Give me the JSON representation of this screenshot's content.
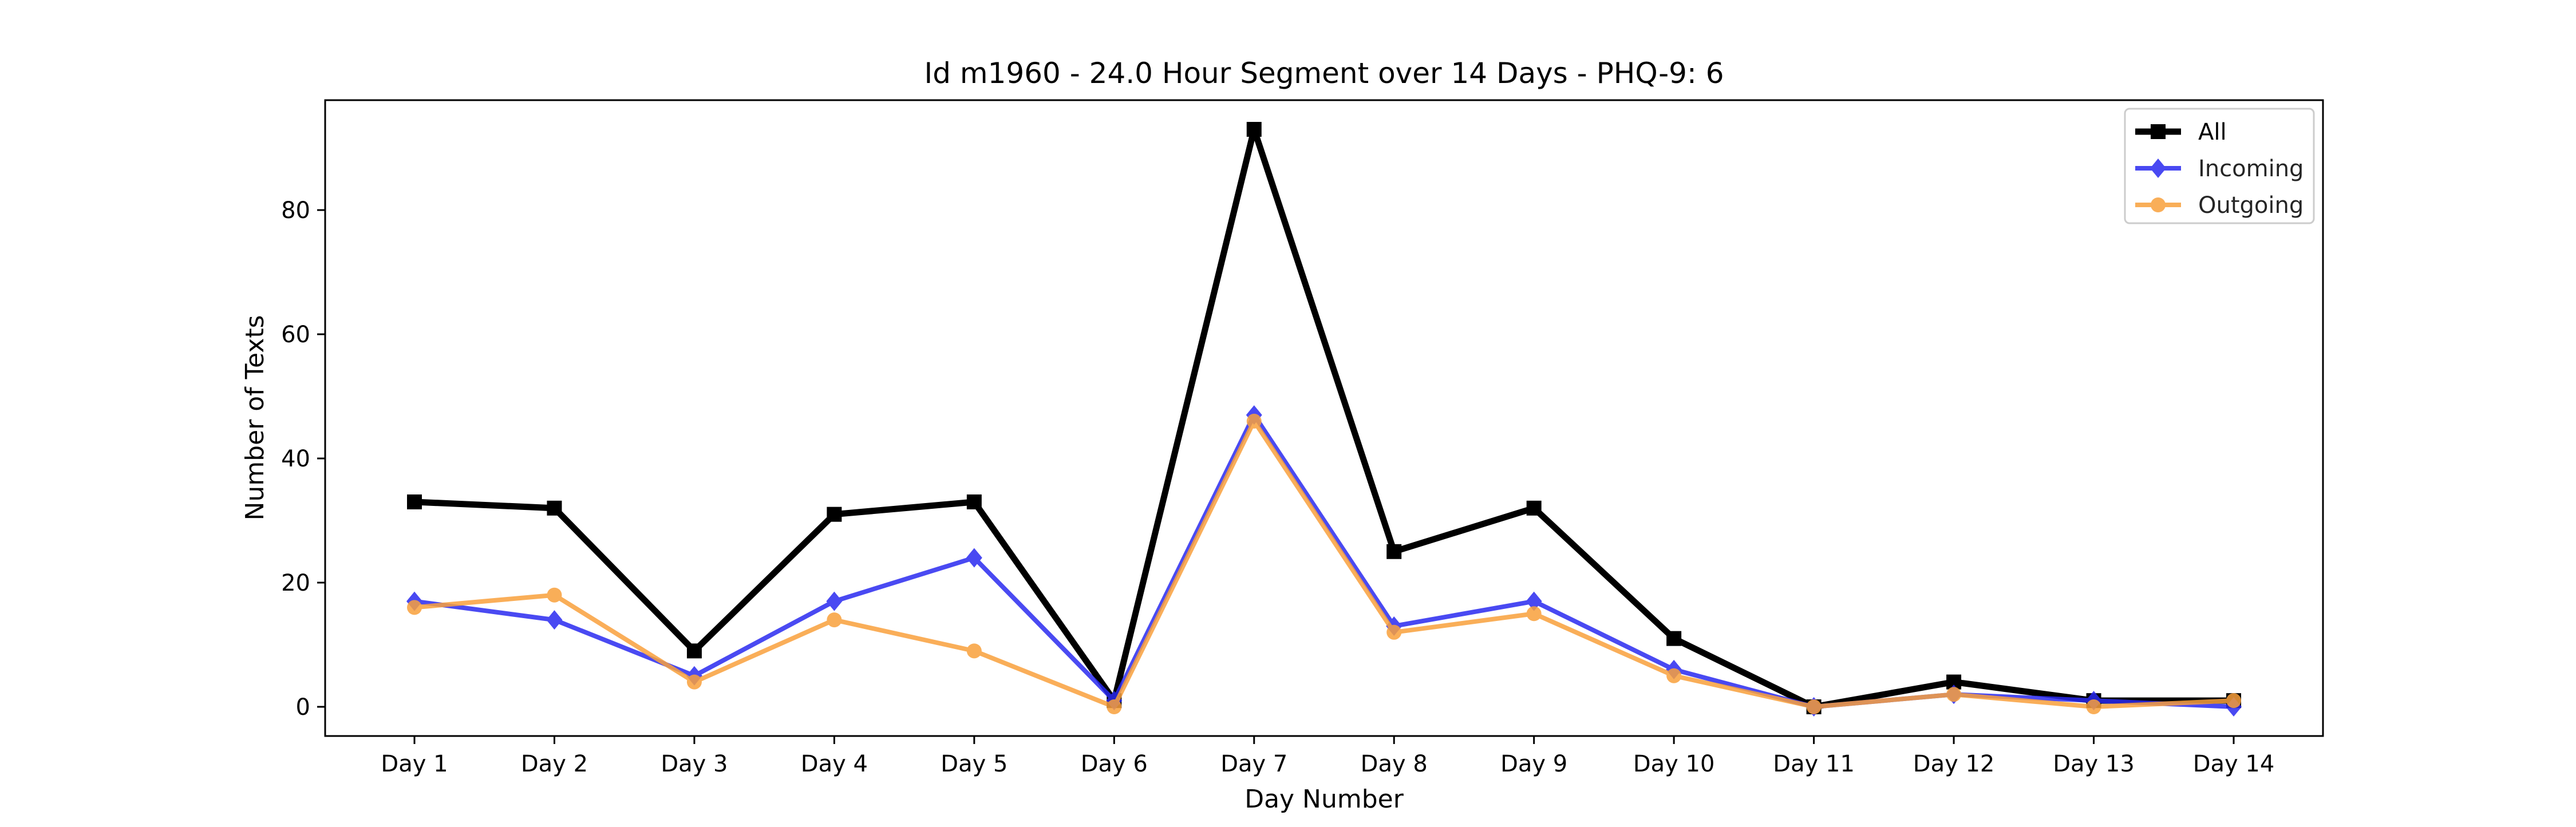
{
  "chart_data": {
    "type": "line",
    "title": "Id m1960 - 24.0 Hour Segment over 14 Days - PHQ-9: 6",
    "xlabel": "Day Number",
    "ylabel": "Number of Texts",
    "categories": [
      "Day 1",
      "Day 2",
      "Day 3",
      "Day 4",
      "Day 5",
      "Day 6",
      "Day 7",
      "Day 8",
      "Day 9",
      "Day 10",
      "Day 11",
      "Day 12",
      "Day 13",
      "Day 14"
    ],
    "yticks": [
      0,
      20,
      40,
      60,
      80
    ],
    "ylim": [
      -4.7,
      97.7
    ],
    "grid": false,
    "legend_position": "top-right",
    "series": [
      {
        "name": "All",
        "color": "#000000",
        "marker": "square",
        "values": [
          33,
          32,
          9,
          31,
          33,
          1,
          93,
          25,
          32,
          11,
          0,
          4,
          1,
          1
        ]
      },
      {
        "name": "Incoming",
        "color": "#2a2af0",
        "marker": "diamond",
        "values": [
          17,
          14,
          5,
          17,
          24,
          1,
          47,
          13,
          17,
          6,
          0,
          2,
          1,
          0
        ]
      },
      {
        "name": "Outgoing",
        "color": "#f9a03c",
        "marker": "circle",
        "values": [
          16,
          18,
          4,
          14,
          9,
          0,
          46,
          12,
          15,
          5,
          0,
          2,
          0,
          1
        ]
      }
    ]
  }
}
